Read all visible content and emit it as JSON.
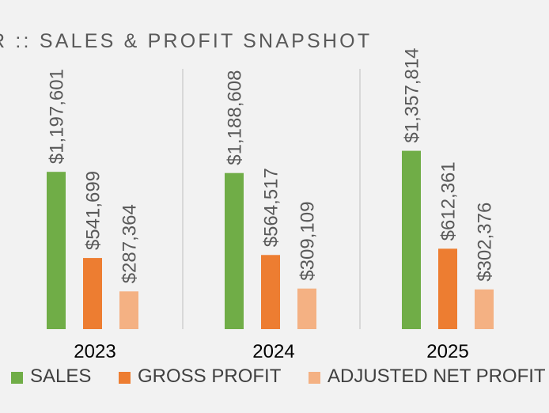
{
  "chart_data": {
    "type": "bar",
    "title": "R :: SALES & PROFIT SNAPSHOT",
    "categories": [
      "2023",
      "2024",
      "2025"
    ],
    "series": [
      {
        "name": "SALES",
        "color": "#70ad47",
        "values": [
          1197601,
          1188608,
          1357814
        ],
        "labels": [
          "$1,197,601",
          "$1,188,608",
          "$1,357,814"
        ]
      },
      {
        "name": "GROSS PROFIT",
        "color": "#ed7d31",
        "values": [
          541699,
          564517,
          612361
        ],
        "labels": [
          "$541,699",
          "$564,517",
          "$612,361"
        ]
      },
      {
        "name": "ADJUSTED NET PROFIT",
        "color": "#f4b183",
        "values": [
          287364,
          309109,
          302376
        ],
        "labels": [
          "$287,364",
          "$309,109",
          "$302,376"
        ]
      }
    ],
    "xlabel": "",
    "ylabel": "",
    "ylim": [
      0,
      2000000
    ],
    "grid": false,
    "legend_position": "bottom"
  }
}
